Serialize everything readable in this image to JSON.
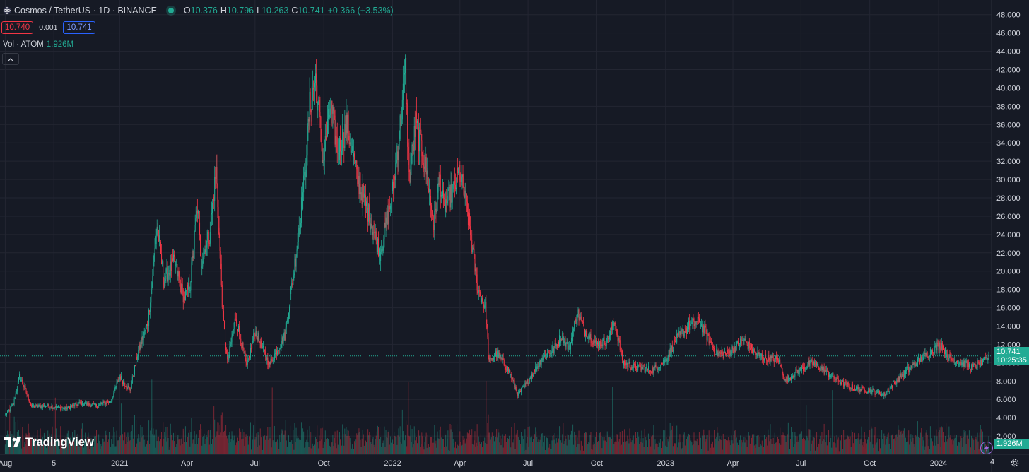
{
  "header": {
    "title": "Cosmos / TetherUS · 1D · BINANCE",
    "ohlc": [
      {
        "k": "O",
        "v": "10.376"
      },
      {
        "k": "H",
        "v": "10.796"
      },
      {
        "k": "L",
        "v": "10.263"
      },
      {
        "k": "C",
        "v": "10.741"
      }
    ],
    "change": "+0.366 (+3.53%)"
  },
  "trade": {
    "sell": "10.740",
    "spread": "0.001",
    "buy": "10.741"
  },
  "volume": {
    "label": "Vol · ATOM",
    "value": "1.926M"
  },
  "badges": {
    "price": "10.741",
    "countdown": "10:25:35",
    "volume": "1.926M"
  },
  "logo": {
    "text": "TradingView"
  },
  "axis_end": "4",
  "colors": {
    "up": "#22ab94",
    "down": "#f23645",
    "background": "#161a25",
    "grid": "#232632"
  },
  "chart_data": {
    "type": "candlestick",
    "interval": "1D",
    "symbol": "Cosmos / TetherUS",
    "exchange": "BINANCE",
    "ylim": [
      0,
      49.6
    ],
    "y_ticks": [
      "2.000",
      "4.000",
      "6.000",
      "8.000",
      "10.000",
      "12.000",
      "14.000",
      "16.000",
      "18.000",
      "20.000",
      "22.000",
      "24.000",
      "26.000",
      "28.000",
      "30.000",
      "32.000",
      "34.000",
      "36.000",
      "38.000",
      "40.000",
      "42.000",
      "44.000",
      "46.000",
      "48.000"
    ],
    "x_ticks": [
      {
        "label": "Aug",
        "date": "2020-08-01"
      },
      {
        "label": "5",
        "date": "2020-10-05"
      },
      {
        "label": "2021",
        "date": "2021-01-01"
      },
      {
        "label": "Apr",
        "date": "2021-04-01"
      },
      {
        "label": "Jul",
        "date": "2021-07-01"
      },
      {
        "label": "Oct",
        "date": "2021-10-01"
      },
      {
        "label": "2022",
        "date": "2022-01-01"
      },
      {
        "label": "Apr",
        "date": "2022-04-01"
      },
      {
        "label": "Jul",
        "date": "2022-07-01"
      },
      {
        "label": "Oct",
        "date": "2022-10-01"
      },
      {
        "label": "2023",
        "date": "2023-01-01"
      },
      {
        "label": "Apr",
        "date": "2023-04-01"
      },
      {
        "label": "Jul",
        "date": "2023-07-01"
      },
      {
        "label": "Oct",
        "date": "2023-10-01"
      },
      {
        "label": "2024",
        "date": "2024-01-01"
      }
    ],
    "price_path": [
      [
        "2020-08-01",
        4.2
      ],
      [
        "2020-08-12",
        5.5
      ],
      [
        "2020-08-20",
        8.5
      ],
      [
        "2020-08-27",
        7.2
      ],
      [
        "2020-09-05",
        5.2
      ],
      [
        "2020-09-25",
        5.3
      ],
      [
        "2020-10-20",
        5.0
      ],
      [
        "2020-11-10",
        5.6
      ],
      [
        "2020-12-01",
        5.3
      ],
      [
        "2020-12-20",
        5.8
      ],
      [
        "2021-01-01",
        8.5
      ],
      [
        "2021-01-15",
        7.0
      ],
      [
        "2021-01-25",
        11.0
      ],
      [
        "2021-02-08",
        14.5
      ],
      [
        "2021-02-20",
        25.0
      ],
      [
        "2021-03-01",
        19.0
      ],
      [
        "2021-03-15",
        21.0
      ],
      [
        "2021-03-28",
        17.0
      ],
      [
        "2021-04-05",
        18.5
      ],
      [
        "2021-04-15",
        27.0
      ],
      [
        "2021-04-20",
        21.0
      ],
      [
        "2021-05-01",
        24.0
      ],
      [
        "2021-05-10",
        31.0
      ],
      [
        "2021-05-19",
        15.0
      ],
      [
        "2021-05-25",
        10.0
      ],
      [
        "2021-06-05",
        15.0
      ],
      [
        "2021-06-20",
        9.5
      ],
      [
        "2021-07-01",
        13.5
      ],
      [
        "2021-07-20",
        9.8
      ],
      [
        "2021-08-10",
        13.0
      ],
      [
        "2021-08-25",
        22.0
      ],
      [
        "2021-09-05",
        30.0
      ],
      [
        "2021-09-12",
        38.0
      ],
      [
        "2021-09-20",
        41.0
      ],
      [
        "2021-09-30",
        32.0
      ],
      [
        "2021-10-10",
        38.0
      ],
      [
        "2021-10-20",
        33.0
      ],
      [
        "2021-11-01",
        36.0
      ],
      [
        "2021-11-15",
        30.0
      ],
      [
        "2021-12-01",
        26.0
      ],
      [
        "2021-12-15",
        22.0
      ],
      [
        "2021-12-31",
        28.0
      ],
      [
        "2022-01-10",
        35.0
      ],
      [
        "2022-01-18",
        42.0
      ],
      [
        "2022-01-23",
        30.0
      ],
      [
        "2022-02-01",
        36.0
      ],
      [
        "2022-02-15",
        31.0
      ],
      [
        "2022-02-25",
        25.0
      ],
      [
        "2022-03-05",
        30.0
      ],
      [
        "2022-03-10",
        27.0
      ],
      [
        "2022-03-25",
        29.0
      ],
      [
        "2022-03-31",
        31.0
      ],
      [
        "2022-04-10",
        27.0
      ],
      [
        "2022-04-25",
        18.0
      ],
      [
        "2022-05-05",
        16.0
      ],
      [
        "2022-05-10",
        10.0
      ],
      [
        "2022-05-20",
        11.0
      ],
      [
        "2022-06-05",
        9.2
      ],
      [
        "2022-06-18",
        6.5
      ],
      [
        "2022-07-01",
        8.0
      ],
      [
        "2022-07-20",
        10.5
      ],
      [
        "2022-08-05",
        11.5
      ],
      [
        "2022-08-15",
        13.0
      ],
      [
        "2022-08-25",
        11.5
      ],
      [
        "2022-09-05",
        15.5
      ],
      [
        "2022-09-15",
        13.5
      ],
      [
        "2022-10-01",
        12.0
      ],
      [
        "2022-10-15",
        12.5
      ],
      [
        "2022-10-25",
        14.5
      ],
      [
        "2022-11-05",
        10.0
      ],
      [
        "2022-11-20",
        9.5
      ],
      [
        "2022-12-15",
        9.2
      ],
      [
        "2023-01-01",
        10.3
      ],
      [
        "2023-01-15",
        12.5
      ],
      [
        "2023-02-01",
        14.0
      ],
      [
        "2023-02-15",
        14.5
      ],
      [
        "2023-02-25",
        13.0
      ],
      [
        "2023-03-10",
        11.0
      ],
      [
        "2023-03-25",
        11.0
      ],
      [
        "2023-04-15",
        12.5
      ],
      [
        "2023-05-01",
        11.0
      ],
      [
        "2023-05-15",
        10.5
      ],
      [
        "2023-06-01",
        10.3
      ],
      [
        "2023-06-10",
        8.0
      ],
      [
        "2023-06-25",
        9.0
      ],
      [
        "2023-07-15",
        10.0
      ],
      [
        "2023-08-01",
        9.2
      ],
      [
        "2023-08-20",
        8.0
      ],
      [
        "2023-09-10",
        7.2
      ],
      [
        "2023-10-01",
        7.0
      ],
      [
        "2023-10-20",
        6.5
      ],
      [
        "2023-11-05",
        8.0
      ],
      [
        "2023-11-25",
        9.5
      ],
      [
        "2023-12-10",
        10.5
      ],
      [
        "2023-12-25",
        11.5
      ],
      [
        "2024-01-05",
        12.0
      ],
      [
        "2024-01-15",
        10.5
      ],
      [
        "2024-02-01",
        10.0
      ],
      [
        "2024-02-15",
        9.5
      ],
      [
        "2024-03-01",
        10.0
      ],
      [
        "2024-03-08",
        10.741
      ]
    ]
  }
}
